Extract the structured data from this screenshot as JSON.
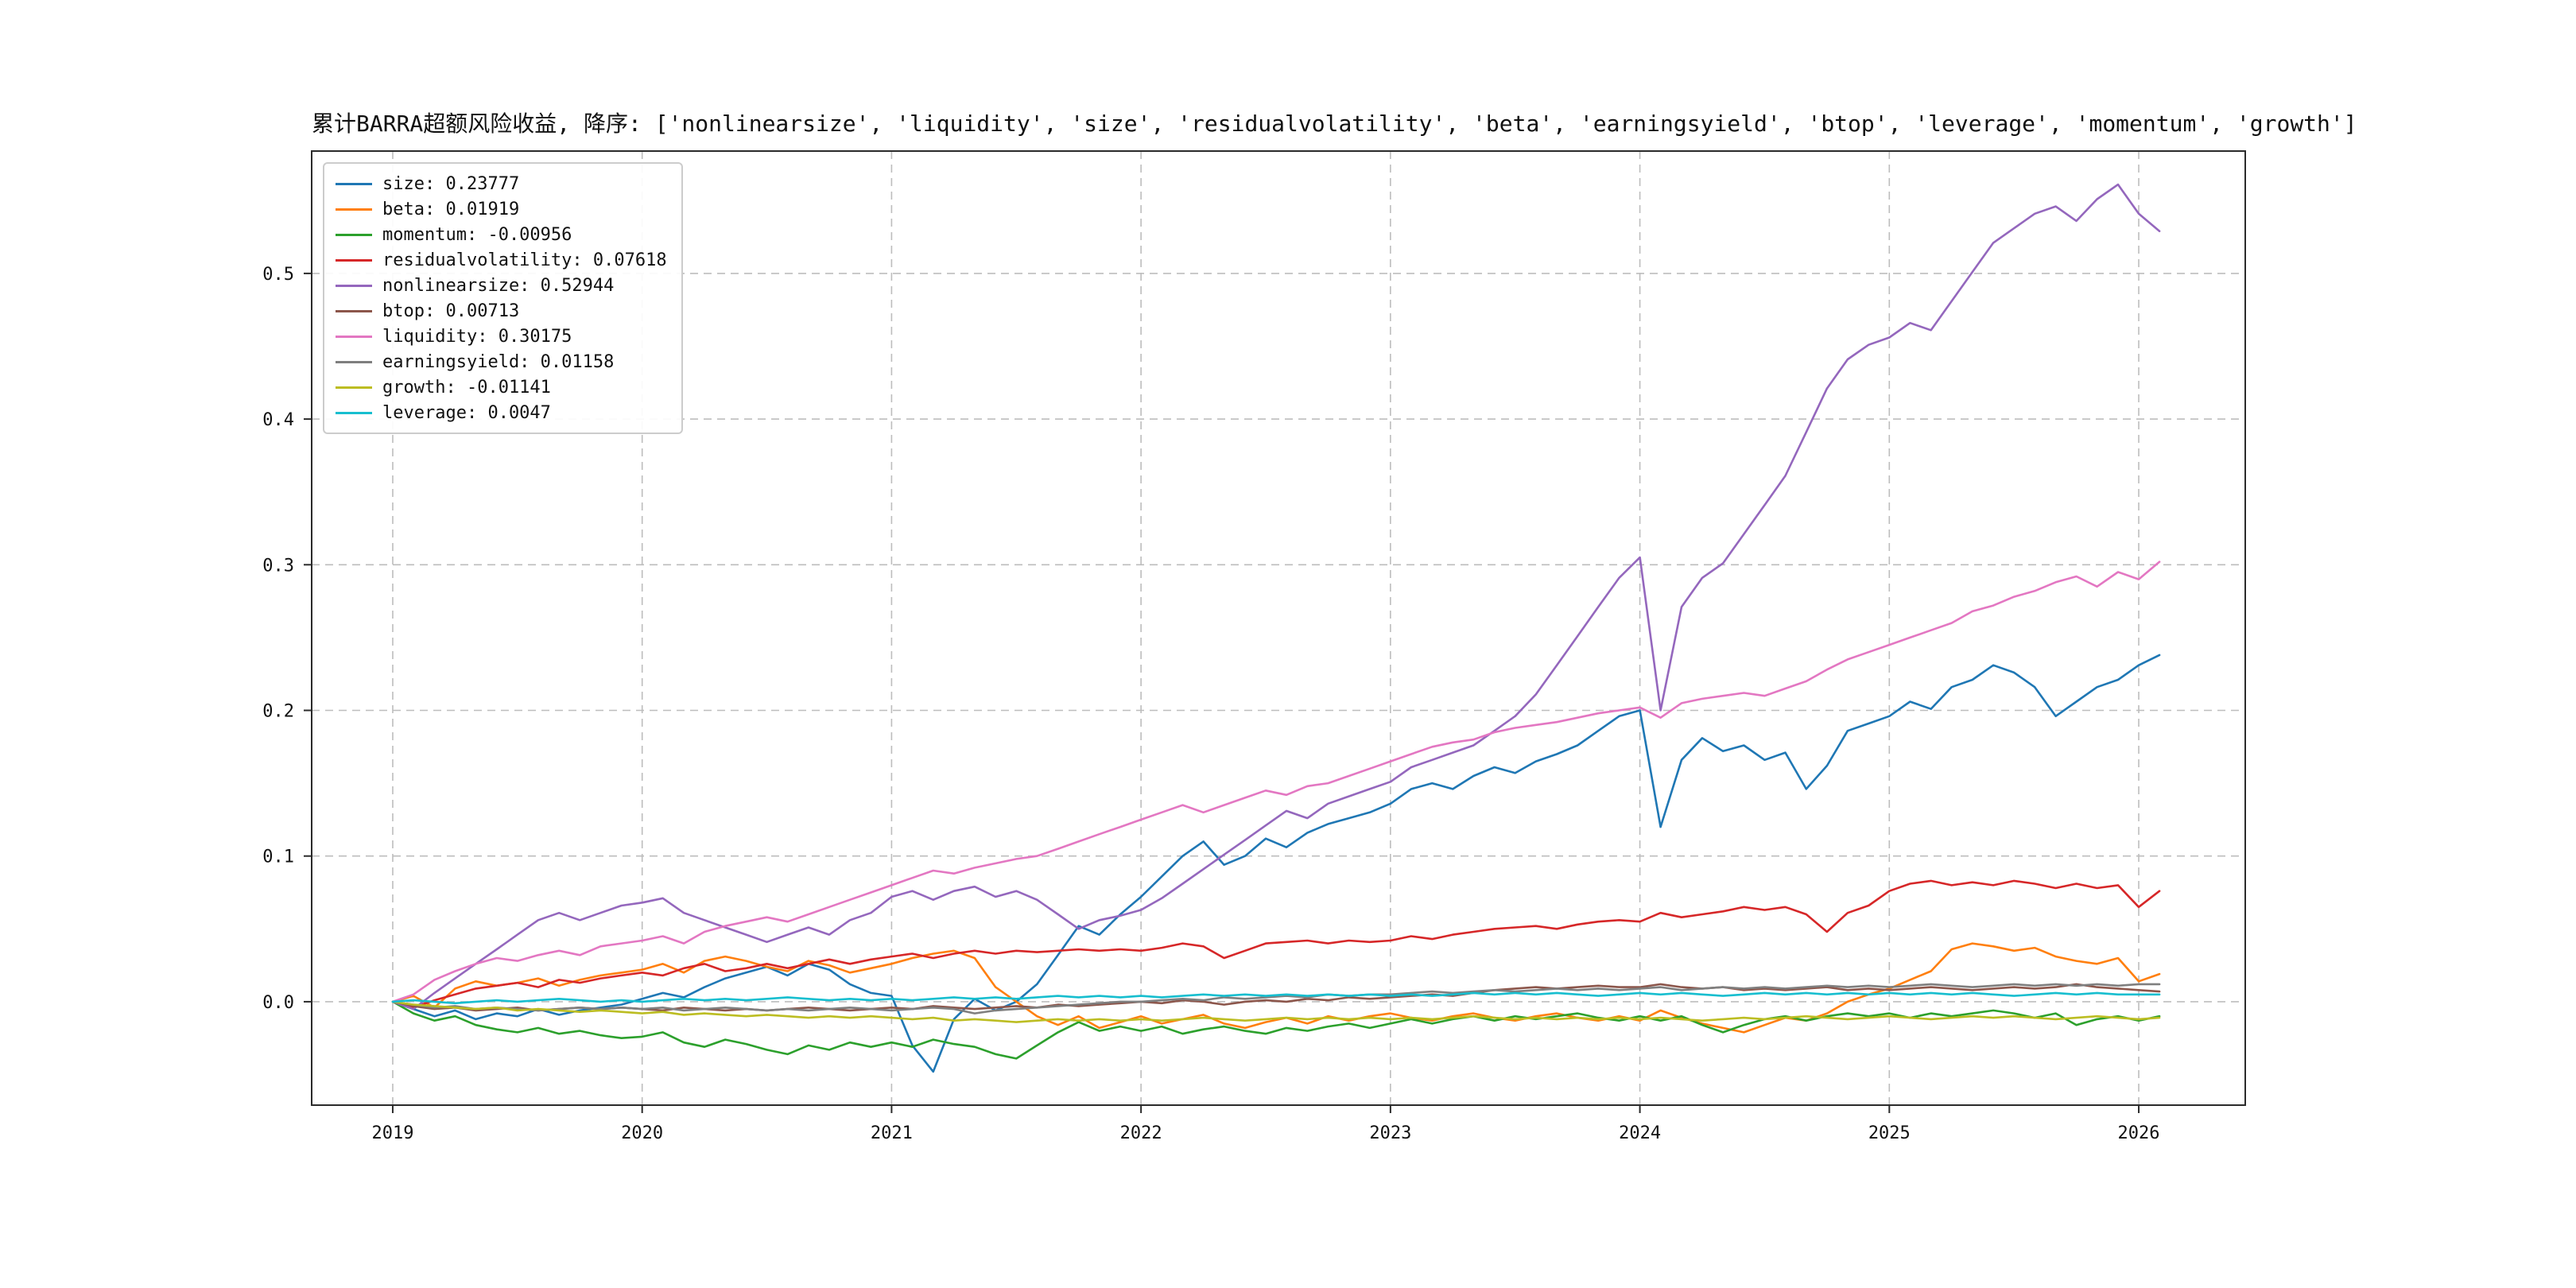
{
  "chart_data": {
    "type": "line",
    "title": "累计BARRA超额风险收益, 降序: ['nonlinearsize', 'liquidity', 'size', 'residualvolatility', 'beta', 'earningsyield', 'btop', 'leverage', 'momentum', 'growth']",
    "grid": "dashed",
    "legend_position": "upper-left",
    "x_range": [
      2018.675,
      2026.427
    ],
    "y_range": [
      -0.071,
      0.584
    ],
    "x_axis": {
      "tick_values": [
        2019,
        2020,
        2021,
        2022,
        2023,
        2024,
        2025,
        2026
      ],
      "tick_labels": [
        "2019",
        "2020",
        "2021",
        "2022",
        "2023",
        "2024",
        "2025",
        "2026"
      ]
    },
    "y_axis": {
      "tick_values": [
        0.0,
        0.1,
        0.2,
        0.3,
        0.4,
        0.5
      ],
      "tick_labels": [
        "0.0",
        "0.1",
        "0.2",
        "0.3",
        "0.4",
        "0.5"
      ]
    },
    "x": [
      2019.0,
      2019.083,
      2019.167,
      2019.25,
      2019.333,
      2019.417,
      2019.5,
      2019.583,
      2019.667,
      2019.75,
      2019.833,
      2019.917,
      2020.0,
      2020.083,
      2020.167,
      2020.25,
      2020.333,
      2020.417,
      2020.5,
      2020.583,
      2020.667,
      2020.75,
      2020.833,
      2020.917,
      2021.0,
      2021.083,
      2021.167,
      2021.25,
      2021.333,
      2021.417,
      2021.5,
      2021.583,
      2021.667,
      2021.75,
      2021.833,
      2021.917,
      2022.0,
      2022.083,
      2022.167,
      2022.25,
      2022.333,
      2022.417,
      2022.5,
      2022.583,
      2022.667,
      2022.75,
      2022.833,
      2022.917,
      2023.0,
      2023.083,
      2023.167,
      2023.25,
      2023.333,
      2023.417,
      2023.5,
      2023.583,
      2023.667,
      2023.75,
      2023.833,
      2023.917,
      2024.0,
      2024.083,
      2024.167,
      2024.25,
      2024.333,
      2024.417,
      2024.5,
      2024.583,
      2024.667,
      2024.75,
      2024.833,
      2024.917,
      2025.0,
      2025.083,
      2025.167,
      2025.25,
      2025.333,
      2025.417,
      2025.5,
      2025.583,
      2025.667,
      2025.75,
      2025.833,
      2025.917,
      2026.0,
      2026.083
    ],
    "series": [
      {
        "name": "size",
        "color": "#1f77b4",
        "final_value": 0.23777,
        "legend_label": "size: 0.23777",
        "values": [
          0.0,
          -0.005,
          -0.01,
          -0.006,
          -0.012,
          -0.008,
          -0.01,
          -0.005,
          -0.009,
          -0.006,
          -0.004,
          -0.002,
          0.002,
          0.006,
          0.003,
          0.01,
          0.016,
          0.02,
          0.024,
          0.018,
          0.026,
          0.022,
          0.012,
          0.006,
          0.004,
          -0.03,
          -0.048,
          -0.012,
          0.002,
          -0.006,
          0.0,
          0.012,
          0.032,
          0.052,
          0.046,
          0.06,
          0.072,
          0.086,
          0.1,
          0.11,
          0.094,
          0.1,
          0.112,
          0.106,
          0.116,
          0.122,
          0.126,
          0.13,
          0.136,
          0.146,
          0.15,
          0.146,
          0.155,
          0.161,
          0.157,
          0.165,
          0.17,
          0.176,
          0.186,
          0.196,
          0.2,
          0.12,
          0.166,
          0.181,
          0.172,
          0.176,
          0.166,
          0.171,
          0.146,
          0.162,
          0.186,
          0.191,
          0.196,
          0.206,
          0.201,
          0.216,
          0.221,
          0.231,
          0.226,
          0.216,
          0.196,
          0.206,
          0.216,
          0.221,
          0.231,
          0.238
        ]
      },
      {
        "name": "beta",
        "color": "#ff7f0e",
        "final_value": 0.01919,
        "legend_label": "beta: 0.01919",
        "values": [
          0.0,
          0.004,
          -0.004,
          0.009,
          0.014,
          0.011,
          0.013,
          0.016,
          0.011,
          0.015,
          0.018,
          0.02,
          0.022,
          0.026,
          0.02,
          0.028,
          0.031,
          0.028,
          0.024,
          0.021,
          0.028,
          0.025,
          0.02,
          0.023,
          0.026,
          0.03,
          0.033,
          0.035,
          0.03,
          0.01,
          0.0,
          -0.01,
          -0.016,
          -0.01,
          -0.018,
          -0.014,
          -0.01,
          -0.015,
          -0.012,
          -0.009,
          -0.015,
          -0.018,
          -0.014,
          -0.011,
          -0.015,
          -0.01,
          -0.013,
          -0.01,
          -0.008,
          -0.011,
          -0.013,
          -0.01,
          -0.008,
          -0.011,
          -0.013,
          -0.01,
          -0.008,
          -0.011,
          -0.013,
          -0.01,
          -0.013,
          -0.006,
          -0.011,
          -0.015,
          -0.018,
          -0.021,
          -0.016,
          -0.011,
          -0.013,
          -0.008,
          0.0,
          0.005,
          0.009,
          0.015,
          0.021,
          0.036,
          0.04,
          0.038,
          0.035,
          0.037,
          0.031,
          0.028,
          0.026,
          0.03,
          0.014,
          0.019
        ]
      },
      {
        "name": "momentum",
        "color": "#2ca02c",
        "final_value": -0.00956,
        "legend_label": "momentum: -0.00956",
        "values": [
          0.0,
          -0.008,
          -0.013,
          -0.01,
          -0.016,
          -0.019,
          -0.021,
          -0.018,
          -0.022,
          -0.02,
          -0.023,
          -0.025,
          -0.024,
          -0.021,
          -0.028,
          -0.031,
          -0.026,
          -0.029,
          -0.033,
          -0.036,
          -0.03,
          -0.033,
          -0.028,
          -0.031,
          -0.028,
          -0.031,
          -0.026,
          -0.029,
          -0.031,
          -0.036,
          -0.039,
          -0.03,
          -0.021,
          -0.014,
          -0.02,
          -0.017,
          -0.02,
          -0.017,
          -0.022,
          -0.019,
          -0.017,
          -0.02,
          -0.022,
          -0.018,
          -0.02,
          -0.017,
          -0.015,
          -0.018,
          -0.015,
          -0.012,
          -0.015,
          -0.012,
          -0.01,
          -0.013,
          -0.01,
          -0.012,
          -0.01,
          -0.008,
          -0.011,
          -0.013,
          -0.01,
          -0.013,
          -0.01,
          -0.016,
          -0.021,
          -0.016,
          -0.012,
          -0.01,
          -0.013,
          -0.01,
          -0.008,
          -0.01,
          -0.008,
          -0.011,
          -0.008,
          -0.01,
          -0.008,
          -0.006,
          -0.008,
          -0.011,
          -0.008,
          -0.016,
          -0.012,
          -0.01,
          -0.013,
          -0.01
        ]
      },
      {
        "name": "residualvolatility",
        "color": "#d62728",
        "final_value": 0.07618,
        "legend_label": "residualvolatility: 0.07618",
        "values": [
          0.0,
          -0.004,
          0.001,
          0.005,
          0.009,
          0.011,
          0.013,
          0.01,
          0.015,
          0.013,
          0.016,
          0.018,
          0.02,
          0.018,
          0.023,
          0.026,
          0.021,
          0.023,
          0.026,
          0.023,
          0.026,
          0.029,
          0.026,
          0.029,
          0.031,
          0.033,
          0.03,
          0.033,
          0.035,
          0.033,
          0.035,
          0.034,
          0.035,
          0.036,
          0.035,
          0.036,
          0.035,
          0.037,
          0.04,
          0.038,
          0.03,
          0.035,
          0.04,
          0.041,
          0.042,
          0.04,
          0.042,
          0.041,
          0.042,
          0.045,
          0.043,
          0.046,
          0.048,
          0.05,
          0.051,
          0.052,
          0.05,
          0.053,
          0.055,
          0.056,
          0.055,
          0.061,
          0.058,
          0.06,
          0.062,
          0.065,
          0.063,
          0.065,
          0.06,
          0.048,
          0.061,
          0.066,
          0.076,
          0.081,
          0.083,
          0.08,
          0.082,
          0.08,
          0.083,
          0.081,
          0.078,
          0.081,
          0.078,
          0.08,
          0.065,
          0.076
        ]
      },
      {
        "name": "nonlinearsize",
        "color": "#9467bd",
        "final_value": 0.52944,
        "legend_label": "nonlinearsize: 0.52944",
        "values": [
          0.0,
          -0.005,
          0.006,
          0.016,
          0.026,
          0.036,
          0.046,
          0.056,
          0.061,
          0.056,
          0.061,
          0.066,
          0.068,
          0.071,
          0.061,
          0.056,
          0.051,
          0.046,
          0.041,
          0.046,
          0.051,
          0.046,
          0.056,
          0.061,
          0.072,
          0.076,
          0.07,
          0.076,
          0.079,
          0.072,
          0.076,
          0.07,
          0.06,
          0.05,
          0.056,
          0.059,
          0.063,
          0.071,
          0.081,
          0.091,
          0.101,
          0.111,
          0.121,
          0.131,
          0.126,
          0.136,
          0.141,
          0.146,
          0.151,
          0.161,
          0.166,
          0.171,
          0.176,
          0.186,
          0.196,
          0.211,
          0.231,
          0.251,
          0.271,
          0.291,
          0.305,
          0.2,
          0.271,
          0.291,
          0.301,
          0.321,
          0.341,
          0.361,
          0.391,
          0.421,
          0.441,
          0.451,
          0.456,
          0.466,
          0.461,
          0.481,
          0.501,
          0.521,
          0.531,
          0.541,
          0.546,
          0.536,
          0.551,
          0.561,
          0.541,
          0.529
        ]
      },
      {
        "name": "btop",
        "color": "#8c564b",
        "final_value": 0.00713,
        "legend_label": "btop: 0.00713",
        "values": [
          0.0,
          -0.003,
          -0.005,
          -0.004,
          -0.006,
          -0.005,
          -0.004,
          -0.006,
          -0.005,
          -0.004,
          -0.005,
          -0.004,
          -0.005,
          -0.006,
          -0.004,
          -0.005,
          -0.006,
          -0.005,
          -0.006,
          -0.005,
          -0.004,
          -0.005,
          -0.006,
          -0.005,
          -0.004,
          -0.005,
          -0.003,
          -0.004,
          -0.005,
          -0.004,
          -0.003,
          -0.004,
          -0.002,
          -0.003,
          -0.002,
          -0.001,
          0.0,
          -0.001,
          0.001,
          0.0,
          -0.002,
          0.0,
          0.001,
          0.0,
          0.002,
          0.001,
          0.003,
          0.002,
          0.003,
          0.004,
          0.005,
          0.004,
          0.006,
          0.008,
          0.009,
          0.01,
          0.009,
          0.01,
          0.011,
          0.01,
          0.01,
          0.012,
          0.01,
          0.009,
          0.01,
          0.008,
          0.009,
          0.008,
          0.009,
          0.01,
          0.008,
          0.009,
          0.008,
          0.009,
          0.01,
          0.009,
          0.008,
          0.009,
          0.01,
          0.009,
          0.01,
          0.012,
          0.01,
          0.009,
          0.008,
          0.007
        ]
      },
      {
        "name": "liquidity",
        "color": "#e377c2",
        "final_value": 0.30175,
        "legend_label": "liquidity: 0.30175",
        "values": [
          0.0,
          0.005,
          0.015,
          0.021,
          0.026,
          0.03,
          0.028,
          0.032,
          0.035,
          0.032,
          0.038,
          0.04,
          0.042,
          0.045,
          0.04,
          0.048,
          0.052,
          0.055,
          0.058,
          0.055,
          0.06,
          0.065,
          0.07,
          0.075,
          0.08,
          0.085,
          0.09,
          0.088,
          0.092,
          0.095,
          0.098,
          0.1,
          0.105,
          0.11,
          0.115,
          0.12,
          0.125,
          0.13,
          0.135,
          0.13,
          0.135,
          0.14,
          0.145,
          0.142,
          0.148,
          0.15,
          0.155,
          0.16,
          0.165,
          0.17,
          0.175,
          0.178,
          0.18,
          0.185,
          0.188,
          0.19,
          0.192,
          0.195,
          0.198,
          0.2,
          0.202,
          0.195,
          0.205,
          0.208,
          0.21,
          0.212,
          0.21,
          0.215,
          0.22,
          0.228,
          0.235,
          0.24,
          0.245,
          0.25,
          0.255,
          0.26,
          0.268,
          0.272,
          0.278,
          0.282,
          0.288,
          0.292,
          0.285,
          0.295,
          0.29,
          0.302
        ]
      },
      {
        "name": "earningsyield",
        "color": "#7f7f7f",
        "final_value": 0.01158,
        "legend_label": "earningsyield: 0.01158",
        "values": [
          0.0,
          -0.002,
          -0.004,
          -0.003,
          -0.005,
          -0.004,
          -0.005,
          -0.006,
          -0.005,
          -0.004,
          -0.005,
          -0.004,
          -0.005,
          -0.004,
          -0.006,
          -0.005,
          -0.004,
          -0.005,
          -0.006,
          -0.005,
          -0.006,
          -0.005,
          -0.004,
          -0.005,
          -0.006,
          -0.005,
          -0.004,
          -0.005,
          -0.008,
          -0.006,
          -0.005,
          -0.004,
          -0.003,
          -0.002,
          -0.001,
          0.0,
          0.0,
          0.001,
          0.002,
          0.001,
          0.003,
          0.002,
          0.003,
          0.004,
          0.003,
          0.005,
          0.004,
          0.005,
          0.005,
          0.006,
          0.007,
          0.006,
          0.007,
          0.008,
          0.007,
          0.008,
          0.009,
          0.008,
          0.009,
          0.008,
          0.009,
          0.01,
          0.008,
          0.009,
          0.01,
          0.009,
          0.01,
          0.009,
          0.01,
          0.011,
          0.01,
          0.011,
          0.01,
          0.011,
          0.012,
          0.011,
          0.01,
          0.011,
          0.012,
          0.011,
          0.012,
          0.011,
          0.012,
          0.011,
          0.012,
          0.012
        ]
      },
      {
        "name": "growth",
        "color": "#bcbd22",
        "final_value": -0.01141,
        "legend_label": "growth: -0.01141",
        "values": [
          0.0,
          -0.002,
          -0.003,
          -0.004,
          -0.005,
          -0.004,
          -0.006,
          -0.005,
          -0.006,
          -0.007,
          -0.006,
          -0.007,
          -0.008,
          -0.007,
          -0.009,
          -0.008,
          -0.009,
          -0.01,
          -0.009,
          -0.01,
          -0.011,
          -0.01,
          -0.011,
          -0.01,
          -0.011,
          -0.012,
          -0.011,
          -0.013,
          -0.012,
          -0.013,
          -0.014,
          -0.013,
          -0.012,
          -0.013,
          -0.012,
          -0.013,
          -0.012,
          -0.013,
          -0.012,
          -0.011,
          -0.012,
          -0.013,
          -0.012,
          -0.011,
          -0.012,
          -0.011,
          -0.012,
          -0.011,
          -0.012,
          -0.011,
          -0.012,
          -0.011,
          -0.01,
          -0.011,
          -0.012,
          -0.011,
          -0.012,
          -0.011,
          -0.012,
          -0.011,
          -0.012,
          -0.011,
          -0.012,
          -0.013,
          -0.012,
          -0.011,
          -0.012,
          -0.011,
          -0.01,
          -0.011,
          -0.012,
          -0.011,
          -0.01,
          -0.011,
          -0.012,
          -0.011,
          -0.01,
          -0.011,
          -0.01,
          -0.011,
          -0.012,
          -0.011,
          -0.01,
          -0.011,
          -0.012,
          -0.011
        ]
      },
      {
        "name": "leverage",
        "color": "#17becf",
        "final_value": 0.0047,
        "legend_label": "leverage: 0.0047",
        "values": [
          0.0,
          0.001,
          0.0,
          -0.001,
          0.0,
          0.001,
          0.0,
          0.001,
          0.002,
          0.001,
          0.0,
          0.001,
          0.0,
          0.001,
          0.002,
          0.001,
          0.002,
          0.001,
          0.002,
          0.003,
          0.002,
          0.001,
          0.002,
          0.001,
          0.002,
          0.001,
          0.002,
          0.003,
          0.002,
          0.003,
          0.002,
          0.003,
          0.004,
          0.003,
          0.004,
          0.003,
          0.004,
          0.003,
          0.004,
          0.005,
          0.004,
          0.005,
          0.004,
          0.005,
          0.004,
          0.005,
          0.004,
          0.005,
          0.004,
          0.005,
          0.004,
          0.005,
          0.006,
          0.005,
          0.006,
          0.005,
          0.006,
          0.005,
          0.004,
          0.005,
          0.006,
          0.005,
          0.006,
          0.005,
          0.004,
          0.005,
          0.006,
          0.005,
          0.006,
          0.005,
          0.006,
          0.005,
          0.006,
          0.005,
          0.006,
          0.005,
          0.006,
          0.005,
          0.004,
          0.005,
          0.006,
          0.005,
          0.006,
          0.005,
          0.005,
          0.005
        ]
      }
    ]
  }
}
